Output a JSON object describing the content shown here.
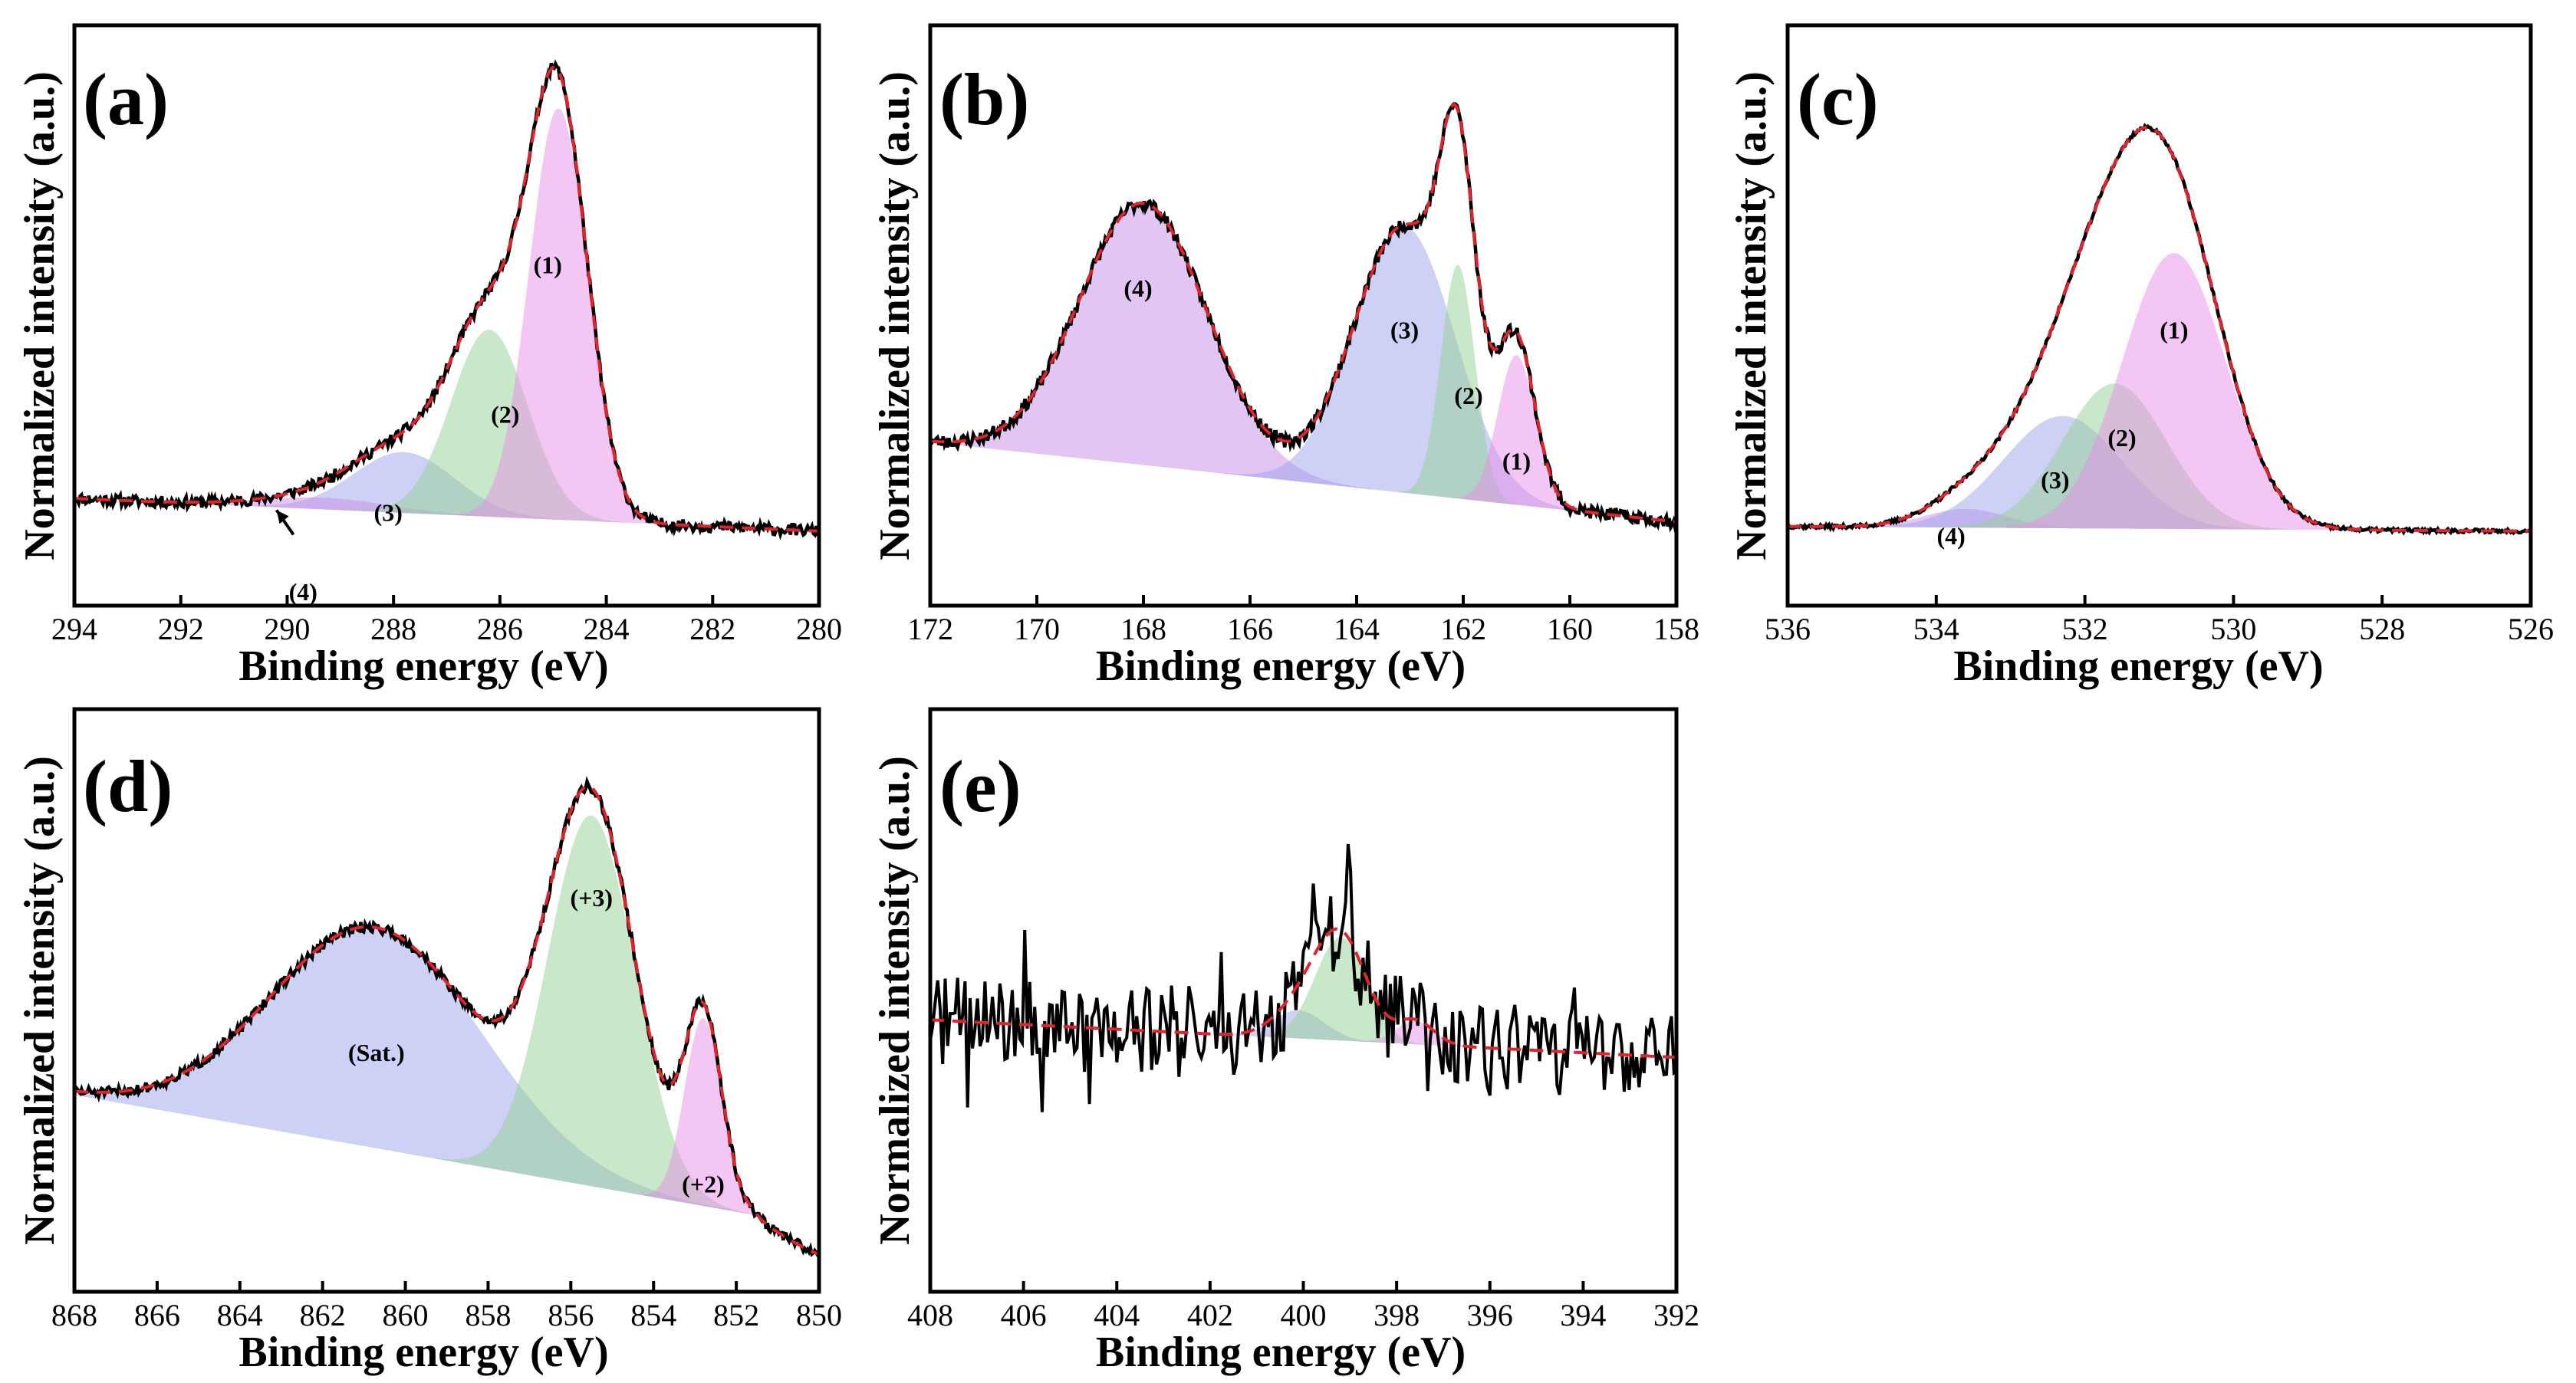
{
  "figure": {
    "y_axis_label": "Normalized intensity (a.u.)",
    "x_axis_label": "Binding energy (eV)"
  },
  "colors": {
    "pink": "#e88ee8",
    "green": "#93d293",
    "blue": "#9ea4ee",
    "purple": "#c58ce6",
    "fit": "#e0242b",
    "data": "#000000"
  },
  "chart_data": [
    {
      "type": "line",
      "panel": "(a)",
      "xlabel": "Binding energy (eV)",
      "ylabel": "Normalized intensity (a.u.)",
      "xlim": [
        294,
        280
      ],
      "ylim": [
        0,
        1.08
      ],
      "xticks": [
        294,
        292,
        290,
        288,
        286,
        284,
        282,
        280
      ],
      "xtick_labels": [
        "294",
        "292",
        "290",
        "288",
        "286",
        "284",
        "282",
        "280"
      ],
      "baseline": {
        "x": [
          294,
          280
        ],
        "y": [
          0.13,
          0.06
        ]
      },
      "components": [
        {
          "label": "(3)",
          "center": 287.8,
          "sigma": 0.95,
          "amp": 0.13,
          "color": "blue",
          "label_at": [
            288.1,
            0.1
          ]
        },
        {
          "label": "(4)",
          "center": 289.3,
          "sigma": 1.2,
          "amp": 0.025,
          "color": "purple",
          "label_at": [
            289.7,
            -0.07
          ]
        },
        {
          "label": "(2)",
          "center": 286.2,
          "sigma": 0.72,
          "amp": 0.4,
          "color": "green",
          "label_at": [
            285.9,
            0.31
          ]
        },
        {
          "label": "(1)",
          "center": 284.9,
          "sigma": 0.55,
          "amp": 0.88,
          "color": "pink",
          "label_at": [
            285.1,
            0.63
          ]
        }
      ],
      "noise": 0.012,
      "seed": 11,
      "tail": null
    },
    {
      "type": "line",
      "panel": "(b)",
      "xlabel": "Binding energy (eV)",
      "ylabel": "Normalized intensity (a.u.)",
      "xlim": [
        172,
        158
      ],
      "ylim": [
        0,
        1.08
      ],
      "xticks": [
        172,
        170,
        168,
        166,
        164,
        162,
        160,
        158
      ],
      "xtick_labels": [
        "172",
        "170",
        "168",
        "166",
        "164",
        "162",
        "160",
        "158"
      ],
      "baseline": {
        "x": [
          172,
          158
        ],
        "y": [
          0.25,
          0.08
        ]
      },
      "components": [
        {
          "label": "(4)",
          "center": 168.0,
          "sigma": 1.2,
          "amp": 0.56,
          "color": "purple",
          "label_at": [
            168.1,
            0.58
          ]
        },
        {
          "label": "(3)",
          "center": 163.1,
          "sigma": 0.95,
          "amp": 0.57,
          "color": "blue",
          "label_at": [
            163.1,
            0.49
          ]
        },
        {
          "label": "(2)",
          "center": 162.1,
          "sigma": 0.32,
          "amp": 0.5,
          "color": "green",
          "label_at": [
            161.9,
            0.35
          ]
        },
        {
          "label": "(1)",
          "center": 161.0,
          "sigma": 0.35,
          "amp": 0.32,
          "color": "pink",
          "label_at": [
            161.0,
            0.21
          ]
        }
      ],
      "noise": 0.014,
      "seed": 23,
      "tail": null
    },
    {
      "type": "line",
      "panel": "(c)",
      "xlabel": "Binding energy (eV)",
      "ylabel": "Normalized intensity (a.u.)",
      "xlim": [
        536,
        526
      ],
      "ylim": [
        0,
        1.08
      ],
      "xticks": [
        536,
        534,
        532,
        530,
        528,
        526
      ],
      "xtick_labels": [
        "536",
        "534",
        "532",
        "530",
        "528",
        "526"
      ],
      "baseline": {
        "x": [
          536,
          526
        ],
        "y": [
          0.07,
          0.06
        ]
      },
      "components": [
        {
          "label": "(4)",
          "center": 533.6,
          "sigma": 0.55,
          "amp": 0.04,
          "color": "purple",
          "label_at": [
            533.8,
            0.05
          ]
        },
        {
          "label": "(3)",
          "center": 532.3,
          "sigma": 0.8,
          "amp": 0.24,
          "color": "blue",
          "label_at": [
            532.4,
            0.17
          ]
        },
        {
          "label": "(2)",
          "center": 531.6,
          "sigma": 0.7,
          "amp": 0.31,
          "color": "green",
          "label_at": [
            531.5,
            0.26
          ]
        },
        {
          "label": "(1)",
          "center": 530.8,
          "sigma": 0.7,
          "amp": 0.59,
          "color": "pink",
          "label_at": [
            530.8,
            0.49
          ]
        }
      ],
      "noise": 0.004,
      "seed": 37,
      "tail": null
    },
    {
      "type": "line",
      "panel": "(d)",
      "xlabel": "Binding energy (eV)",
      "ylabel": "Normalized intensity (a.u.)",
      "xlim": [
        868,
        850
      ],
      "ylim": [
        0,
        1.08
      ],
      "xticks": [
        868,
        866,
        864,
        862,
        860,
        858,
        856,
        854,
        852,
        850
      ],
      "xtick_labels": [
        "868",
        "866",
        "864",
        "862",
        "860",
        "858",
        "856",
        "854",
        "852",
        "850"
      ],
      "baseline": {
        "x": [
          868,
          850
        ],
        "y": [
          0.32,
          0.04
        ]
      },
      "components": [
        {
          "label": "(Sat.)",
          "center": 860.7,
          "sigma": 2.55,
          "amp": 0.47,
          "color": "blue",
          "label_at": [
            860.7,
            0.41
          ]
        },
        {
          "label": "(+3)",
          "center": 855.5,
          "sigma": 1.05,
          "amp": 0.79,
          "color": "green",
          "label_at": [
            855.5,
            0.74
          ]
        },
        {
          "label": "(+2)",
          "center": 852.8,
          "sigma": 0.45,
          "amp": 0.4,
          "color": "pink",
          "label_at": [
            852.8,
            0.13
          ]
        }
      ],
      "noise": 0.011,
      "seed": 51,
      "tail": {
        "x0": 851.6,
        "y": -0.02
      }
    },
    {
      "type": "line",
      "panel": "(e)",
      "xlabel": "Binding energy (eV)",
      "ylabel": "Normalized intensity (a.u.)",
      "xlim": [
        408,
        392
      ],
      "ylim": [
        0,
        1.08
      ],
      "xticks": [
        408,
        406,
        404,
        402,
        400,
        398,
        396,
        394,
        392
      ],
      "xtick_labels": [
        "408",
        "406",
        "404",
        "402",
        "400",
        "398",
        "396",
        "394",
        "392"
      ],
      "baseline": {
        "x": [
          408,
          392
        ],
        "y": [
          0.48,
          0.4
        ]
      },
      "components": [
        {
          "label": "",
          "center": 400.1,
          "sigma": 0.55,
          "amp": 0.06,
          "color": "blue",
          "label_at": null
        },
        {
          "label": "",
          "center": 399.2,
          "sigma": 0.55,
          "amp": 0.22,
          "color": "green",
          "label_at": null
        },
        {
          "label": "",
          "center": 397.6,
          "sigma": 0.4,
          "amp": 0.05,
          "color": "pink",
          "label_at": null
        }
      ],
      "noise": 0.095,
      "seed": 71,
      "tail": null
    }
  ]
}
